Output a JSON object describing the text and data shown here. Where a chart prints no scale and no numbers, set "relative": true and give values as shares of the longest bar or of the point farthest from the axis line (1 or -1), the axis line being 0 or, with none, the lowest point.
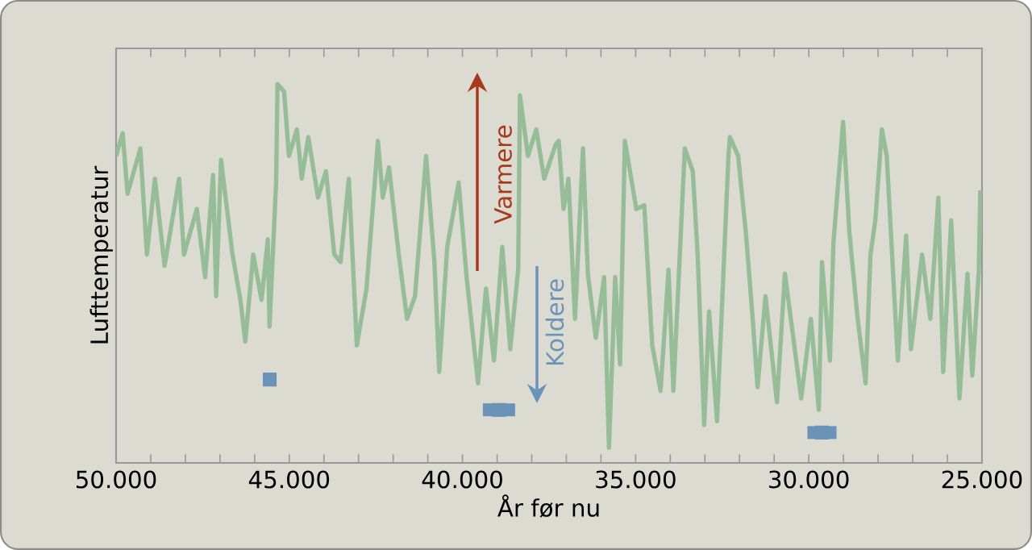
{
  "chart_data": {
    "type": "line",
    "relative": true,
    "xlabel": "År før nu",
    "ylabel": "Lufttemperatur",
    "color": "#96bd98",
    "annotations": [
      "Varmere",
      "Koldere"
    ],
    "xlim": [
      50000,
      25000
    ],
    "xticks": [
      {
        "value": 50000,
        "label": "50.000"
      },
      {
        "value": 49000,
        "label": null
      },
      {
        "value": 48000,
        "label": null
      },
      {
        "value": 47000,
        "label": null
      },
      {
        "value": 46000,
        "label": null
      },
      {
        "value": 45000,
        "label": "45.000"
      },
      {
        "value": 44000,
        "label": null
      },
      {
        "value": 43000,
        "label": null
      },
      {
        "value": 42000,
        "label": null
      },
      {
        "value": 41000,
        "label": null
      },
      {
        "value": 40000,
        "label": "40.000"
      },
      {
        "value": 39000,
        "label": null
      },
      {
        "value": 38000,
        "label": null
      },
      {
        "value": 37000,
        "label": null
      },
      {
        "value": 36000,
        "label": null
      },
      {
        "value": 35000,
        "label": "35.000"
      },
      {
        "value": 34000,
        "label": null
      },
      {
        "value": 33000,
        "label": null
      },
      {
        "value": 32000,
        "label": null
      },
      {
        "value": 31000,
        "label": null
      },
      {
        "value": 30000,
        "label": "30.000"
      },
      {
        "value": 29000,
        "label": null
      },
      {
        "value": 28000,
        "label": null
      },
      {
        "value": 27000,
        "label": null
      },
      {
        "value": 26000,
        "label": null
      },
      {
        "value": 25000,
        "label": "25.000"
      }
    ],
    "tick_labels": "x",
    "grid": false,
    "marker": "none",
    "line_style": "solid",
    "series": [
      {
        "type": "scatter",
        "color": "#6a93b7",
        "marker": "square",
        "x": [
          45565,
          38945,
          29620
        ],
        "values": [
          0.22,
          0.14,
          0.08
        ],
        "xerrors": [
          135,
          465,
          420
        ]
      }
    ],
    "x": [
      50000,
      49810,
      49670,
      49300,
      49110,
      48880,
      48600,
      48180,
      48040,
      47670,
      47430,
      47200,
      47110,
      46970,
      46640,
      46410,
      46270,
      46040,
      45800,
      45620,
      45570,
      45380,
      45340,
      45150,
      45010,
      44780,
      44640,
      44450,
      44170,
      43940,
      43700,
      43520,
      43280,
      43050,
      42770,
      42440,
      42300,
      42120,
      41840,
      41600,
      41370,
      41050,
      40810,
      40670,
      40440,
      40110,
      39880,
      39550,
      39320,
      39090,
      38850,
      38620,
      38390,
      38340,
      38110,
      37870,
      37640,
      37310,
      37220,
      37080,
      36940,
      36750,
      36520,
      36380,
      36150,
      35910,
      35770,
      35590,
      35450,
      35310,
      34980,
      34750,
      34520,
      34280,
      34050,
      33910,
      33580,
      33350,
      33210,
      33020,
      32880,
      32650,
      32320,
      32280,
      32040,
      31810,
      31620,
      31480,
      31250,
      30920,
      30690,
      30220,
      29940,
      29710,
      29620,
      29390,
      29290,
      29010,
      28830,
      28590,
      28360,
      28220,
      28080,
      27890,
      27750,
      27430,
      27190,
      27050,
      26730,
      26490,
      26260,
      26120,
      25890,
      25650,
      25420,
      25280,
      25090,
      25050
    ],
    "values": [
      0.81,
      0.87,
      0.71,
      0.83,
      0.55,
      0.75,
      0.52,
      0.75,
      0.55,
      0.67,
      0.49,
      0.76,
      0.44,
      0.8,
      0.55,
      0.43,
      0.32,
      0.55,
      0.43,
      0.59,
      0.36,
      0.74,
      1.0,
      0.98,
      0.81,
      0.88,
      0.75,
      0.86,
      0.7,
      0.77,
      0.55,
      0.53,
      0.75,
      0.31,
      0.46,
      0.85,
      0.7,
      0.78,
      0.55,
      0.38,
      0.44,
      0.81,
      0.53,
      0.24,
      0.57,
      0.74,
      0.49,
      0.21,
      0.46,
      0.27,
      0.57,
      0.3,
      0.51,
      0.97,
      0.81,
      0.88,
      0.75,
      0.84,
      0.85,
      0.67,
      0.75,
      0.38,
      0.83,
      0.5,
      0.33,
      0.49,
      0.04,
      0.49,
      0.26,
      0.85,
      0.67,
      0.68,
      0.31,
      0.19,
      0.51,
      0.19,
      0.83,
      0.77,
      0.55,
      0.1,
      0.4,
      0.11,
      0.81,
      0.86,
      0.81,
      0.6,
      0.38,
      0.2,
      0.44,
      0.16,
      0.5,
      0.17,
      0.38,
      0.14,
      0.53,
      0.27,
      0.58,
      0.9,
      0.61,
      0.38,
      0.21,
      0.55,
      0.64,
      0.88,
      0.81,
      0.27,
      0.6,
      0.3,
      0.55,
      0.38,
      0.7,
      0.24,
      0.64,
      0.17,
      0.5,
      0.23,
      0.51,
      0.72
    ]
  }
}
